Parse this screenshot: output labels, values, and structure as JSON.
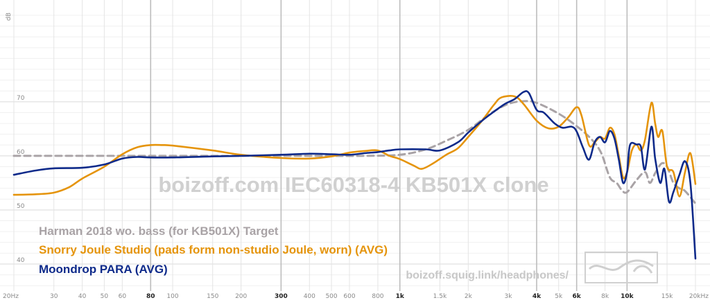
{
  "chart_data": {
    "type": "line",
    "ylabel": "dB",
    "x_scale": "log",
    "xlim": [
      20,
      20000
    ],
    "ylim": [
      35,
      86
    ],
    "y_ticks": [
      40,
      50,
      60,
      70
    ],
    "x_ticks": [
      {
        "value": 20,
        "label": "20Hz",
        "major": false
      },
      {
        "value": 30,
        "label": "30",
        "major": false
      },
      {
        "value": 40,
        "label": "40",
        "major": false
      },
      {
        "value": 50,
        "label": "50",
        "major": false
      },
      {
        "value": 60,
        "label": "60",
        "major": false
      },
      {
        "value": 80,
        "label": "80",
        "major": true
      },
      {
        "value": 100,
        "label": "100",
        "major": false
      },
      {
        "value": 150,
        "label": "150",
        "major": false
      },
      {
        "value": 200,
        "label": "200",
        "major": false
      },
      {
        "value": 300,
        "label": "300",
        "major": true
      },
      {
        "value": 400,
        "label": "400",
        "major": false
      },
      {
        "value": 500,
        "label": "500",
        "major": false
      },
      {
        "value": 600,
        "label": "600",
        "major": false
      },
      {
        "value": 800,
        "label": "800",
        "major": false
      },
      {
        "value": 1000,
        "label": "1k",
        "major": true
      },
      {
        "value": 1500,
        "label": "1.5k",
        "major": false
      },
      {
        "value": 2000,
        "label": "2k",
        "major": false
      },
      {
        "value": 3000,
        "label": "3k",
        "major": false
      },
      {
        "value": 4000,
        "label": "4k",
        "major": true
      },
      {
        "value": 5000,
        "label": "5k",
        "major": false
      },
      {
        "value": 6000,
        "label": "6k",
        "major": true
      },
      {
        "value": 8000,
        "label": "8k",
        "major": false
      },
      {
        "value": 10000,
        "label": "10k",
        "major": true
      },
      {
        "value": 15000,
        "label": "15k",
        "major": false
      },
      {
        "value": 20000,
        "label": "20kHz",
        "major": false
      }
    ],
    "grid": true,
    "watermark": "boizoff.com IEC60318-4 KB501X clone",
    "site_url": "boizoff.squig.link/headphones/",
    "legend_position": "bottom-left",
    "series": [
      {
        "name": "Harman 2018 wo. bass (for KB501X) Target",
        "color": "#a9a3a6",
        "dashed": true,
        "points": [
          [
            20,
            60
          ],
          [
            50,
            60
          ],
          [
            100,
            60
          ],
          [
            200,
            60
          ],
          [
            400,
            60
          ],
          [
            700,
            60
          ],
          [
            1000,
            60.2
          ],
          [
            1300,
            61.2
          ],
          [
            1600,
            62.8
          ],
          [
            2000,
            64.8
          ],
          [
            2500,
            67.8
          ],
          [
            3000,
            69.6
          ],
          [
            3500,
            70.1
          ],
          [
            4000,
            69.8
          ],
          [
            5000,
            67.8
          ],
          [
            6000,
            65.5
          ],
          [
            7000,
            63
          ],
          [
            7700,
            60.5
          ],
          [
            8400,
            56
          ],
          [
            9000,
            55
          ],
          [
            9500,
            53.6
          ],
          [
            10000,
            53.3
          ],
          [
            11000,
            55.5
          ],
          [
            12000,
            57
          ],
          [
            12600,
            55
          ],
          [
            13300,
            56.8
          ],
          [
            14200,
            58.6
          ],
          [
            15000,
            58
          ],
          [
            16000,
            55
          ],
          [
            17000,
            54
          ],
          [
            18000,
            53.5
          ],
          [
            20000,
            51.2
          ]
        ]
      },
      {
        "name": "Snorry Joule Studio (pads form non-studio Joule, worn) (AVG)",
        "color": "#e5940b",
        "dashed": false,
        "points": [
          [
            20,
            52.8
          ],
          [
            25,
            52.9
          ],
          [
            30,
            53.2
          ],
          [
            35,
            54.2
          ],
          [
            40,
            55.8
          ],
          [
            50,
            58
          ],
          [
            60,
            60.3
          ],
          [
            70,
            61.6
          ],
          [
            80,
            62
          ],
          [
            90,
            62
          ],
          [
            100,
            61.9
          ],
          [
            150,
            61
          ],
          [
            200,
            60.2
          ],
          [
            300,
            59.6
          ],
          [
            400,
            59.5
          ],
          [
            500,
            59.9
          ],
          [
            600,
            60.6
          ],
          [
            700,
            60.9
          ],
          [
            800,
            61
          ],
          [
            900,
            60
          ],
          [
            1000,
            59.4
          ],
          [
            1150,
            58.2
          ],
          [
            1250,
            57.6
          ],
          [
            1400,
            58.6
          ],
          [
            1600,
            60.2
          ],
          [
            1800,
            61.4
          ],
          [
            2000,
            63.5
          ],
          [
            2300,
            66.5
          ],
          [
            2600,
            69.5
          ],
          [
            2800,
            70.8
          ],
          [
            3200,
            71
          ],
          [
            3500,
            69.6
          ],
          [
            4000,
            66.5
          ],
          [
            4500,
            65.1
          ],
          [
            5000,
            65.4
          ],
          [
            5500,
            67.1
          ],
          [
            6000,
            69
          ],
          [
            6300,
            67.5
          ],
          [
            6800,
            62
          ],
          [
            7200,
            62.5
          ],
          [
            7600,
            63.5
          ],
          [
            8000,
            63.2
          ],
          [
            8400,
            65.2
          ],
          [
            8800,
            64
          ],
          [
            9200,
            60
          ],
          [
            9600,
            56
          ],
          [
            10000,
            57
          ],
          [
            10500,
            61
          ],
          [
            11000,
            62.1
          ],
          [
            11500,
            61
          ],
          [
            12000,
            63
          ],
          [
            12800,
            69.8
          ],
          [
            13300,
            66
          ],
          [
            13700,
            63.5
          ],
          [
            14300,
            64.6
          ],
          [
            15000,
            58
          ],
          [
            16000,
            57
          ],
          [
            17000,
            52.5
          ],
          [
            18000,
            57
          ],
          [
            19000,
            60.5
          ],
          [
            20000,
            54.8
          ]
        ]
      },
      {
        "name": "Moondrop PARA (AVG)",
        "color": "#0e2a8a",
        "dashed": false,
        "points": [
          [
            20,
            56.5
          ],
          [
            25,
            57.3
          ],
          [
            30,
            57.7
          ],
          [
            40,
            57.8
          ],
          [
            50,
            58.4
          ],
          [
            60,
            59.5
          ],
          [
            70,
            59.8
          ],
          [
            80,
            59.7
          ],
          [
            100,
            59.7
          ],
          [
            150,
            59.9
          ],
          [
            200,
            60
          ],
          [
            300,
            60.2
          ],
          [
            400,
            60.4
          ],
          [
            500,
            60.3
          ],
          [
            600,
            60.2
          ],
          [
            700,
            60.5
          ],
          [
            800,
            60.7
          ],
          [
            900,
            61
          ],
          [
            1000,
            61.2
          ],
          [
            1300,
            61.2
          ],
          [
            1500,
            61
          ],
          [
            1800,
            62.5
          ],
          [
            2000,
            64.3
          ],
          [
            2300,
            66.5
          ],
          [
            2600,
            68.2
          ],
          [
            2900,
            69.6
          ],
          [
            3200,
            70.5
          ],
          [
            3500,
            71.8
          ],
          [
            3700,
            71.6
          ],
          [
            4000,
            68.5
          ],
          [
            4300,
            68
          ],
          [
            4800,
            66
          ],
          [
            5200,
            65.2
          ],
          [
            5700,
            65.4
          ],
          [
            6000,
            64.5
          ],
          [
            6400,
            61.5
          ],
          [
            6800,
            59.3
          ],
          [
            7200,
            62.5
          ],
          [
            7600,
            63.5
          ],
          [
            8000,
            62.5
          ],
          [
            8400,
            64.6
          ],
          [
            8800,
            63.2
          ],
          [
            9200,
            59.3
          ],
          [
            9600,
            55
          ],
          [
            10000,
            57
          ],
          [
            10300,
            62
          ],
          [
            11000,
            62.1
          ],
          [
            11500,
            61.7
          ],
          [
            12000,
            57.5
          ],
          [
            12800,
            65.4
          ],
          [
            13300,
            59.5
          ],
          [
            14000,
            55
          ],
          [
            14600,
            57.6
          ],
          [
            15300,
            51.5
          ],
          [
            16000,
            53.3
          ],
          [
            17000,
            56.5
          ],
          [
            18000,
            59
          ],
          [
            19000,
            55
          ],
          [
            20000,
            41
          ]
        ]
      }
    ]
  }
}
